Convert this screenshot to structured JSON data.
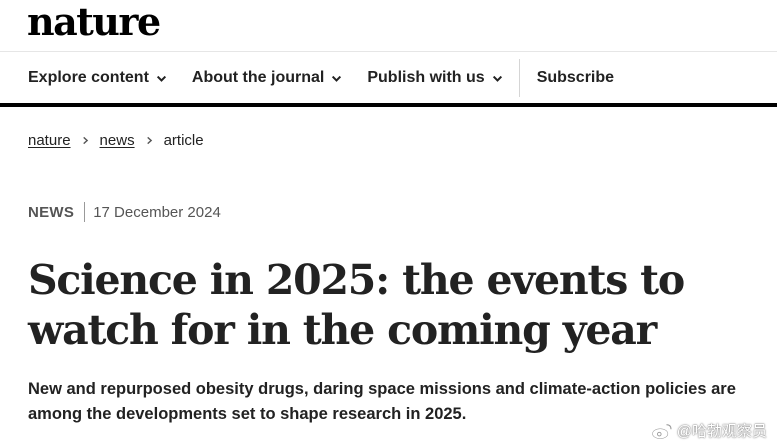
{
  "brand": {
    "logo": "nature"
  },
  "nav": {
    "items": [
      {
        "label": "Explore content"
      },
      {
        "label": "About the journal"
      },
      {
        "label": "Publish with us"
      }
    ],
    "subscribe": "Subscribe"
  },
  "breadcrumb": {
    "items": [
      "nature",
      "news"
    ],
    "current": "article"
  },
  "article": {
    "type": "NEWS",
    "date": "17 December 2024",
    "title": "Science in 2025: the events to watch for in the coming year",
    "standfirst": "New and repurposed obesity drugs, daring space missions and climate-action policies are among the developments set to shape research in 2025."
  },
  "watermark": {
    "text": "@哈勃观察员"
  }
}
